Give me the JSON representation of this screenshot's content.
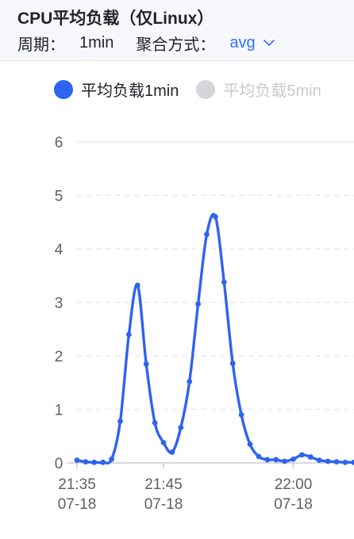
{
  "panel": {
    "title": "CPU平均负载（仅Linux）",
    "period_label": "周期：",
    "period_value": "1min",
    "aggregation_label": "聚合方式：",
    "aggregation_value": "avg"
  },
  "colors": {
    "accent": "#3370ff",
    "series_line": "#2f63f0",
    "inactive": "#c8cacd",
    "grid": "#e3e5e8",
    "axis_text": "#5c6068"
  },
  "chart_data": {
    "type": "line",
    "legend_position": "top-left",
    "series": [
      {
        "name": "平均负载1min",
        "active": true,
        "x": [
          "21:35",
          "21:36",
          "21:37",
          "21:38",
          "21:39",
          "21:40",
          "21:41",
          "21:42",
          "21:43",
          "21:44",
          "21:45",
          "21:46",
          "21:47",
          "21:48",
          "21:49",
          "21:50",
          "21:51",
          "21:52",
          "21:53",
          "21:54",
          "21:55",
          "21:56",
          "21:57",
          "21:58",
          "21:59",
          "22:00",
          "22:01",
          "22:02",
          "22:03",
          "22:04",
          "22:05",
          "22:06",
          "22:07",
          "22:08",
          "22:09"
        ],
        "values": [
          0.05,
          0.02,
          0.01,
          0.01,
          0.07,
          0.78,
          2.4,
          3.32,
          1.85,
          0.75,
          0.38,
          0.2,
          0.66,
          1.52,
          2.97,
          4.27,
          4.6,
          3.38,
          1.86,
          0.9,
          0.35,
          0.12,
          0.06,
          0.06,
          0.03,
          0.07,
          0.15,
          0.11,
          0.05,
          0.03,
          0.02,
          0.01,
          0.01,
          0.01,
          0.01
        ]
      },
      {
        "name": "平均负载5min",
        "active": false
      }
    ],
    "yticks": [
      "0",
      "1",
      "2",
      "3",
      "4",
      "5",
      "6"
    ],
    "ylim": [
      0,
      6
    ],
    "xticks": [
      {
        "x": "21:35",
        "label": "21:35",
        "date": "07-18"
      },
      {
        "x": "21:45",
        "label": "21:45",
        "date": "07-18"
      },
      {
        "x": "22:00",
        "label": "22:00",
        "date": "07-18"
      }
    ],
    "grid": true
  }
}
